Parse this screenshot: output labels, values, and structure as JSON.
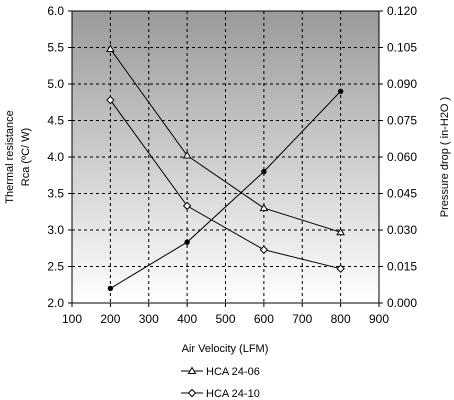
{
  "chart_data": {
    "type": "line",
    "xlabel": "Air Velocity (LFM)",
    "ylabel_left": [
      "Thermal resistance",
      "Rca (ºC/ W)"
    ],
    "ylabel_right": "Pressure drop ( in-H2O )",
    "xlim": [
      100,
      900
    ],
    "xticks": [
      100,
      200,
      300,
      400,
      500,
      600,
      700,
      800,
      900
    ],
    "ylim_left": [
      2.0,
      6.0
    ],
    "yticks_left": [
      "2.0",
      "2.5",
      "3.0",
      "3.5",
      "4.0",
      "4.5",
      "5.0",
      "5.5",
      "6.0"
    ],
    "ylim_right": [
      0.0,
      0.12
    ],
    "yticks_right": [
      "0.000",
      "0.015",
      "0.030",
      "0.045",
      "0.060",
      "0.075",
      "0.090",
      "0.105",
      "0.120"
    ],
    "grid": true,
    "legend_position": "bottom",
    "background": "gradient-gray",
    "series": [
      {
        "name": "HCA 24-06",
        "axis": "left",
        "marker": "triangle",
        "x": [
          200,
          400,
          600,
          800
        ],
        "y": [
          5.48,
          4.02,
          3.3,
          2.97
        ]
      },
      {
        "name": "HCA 24-10",
        "axis": "left",
        "marker": "diamond",
        "x": [
          200,
          400,
          600,
          800
        ],
        "y": [
          4.78,
          3.33,
          2.73,
          2.47
        ]
      },
      {
        "name": "",
        "axis": "right",
        "marker": "dot",
        "x": [
          200,
          400,
          600,
          800
        ],
        "y": [
          0.006,
          0.025,
          0.054,
          0.087
        ]
      }
    ]
  }
}
